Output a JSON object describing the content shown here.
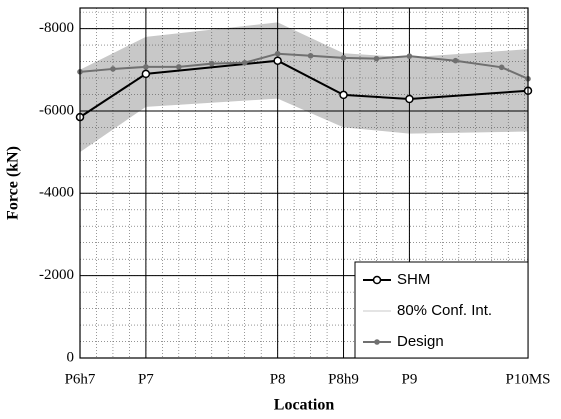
{
  "chart_data": {
    "type": "line",
    "xlabel": "Location",
    "ylabel": "Force (kN)",
    "xlim": [
      0,
      6.8
    ],
    "ylim": [
      0,
      -8500
    ],
    "xticks": [
      {
        "value": 0,
        "label": "P6h7"
      },
      {
        "value": 1,
        "label": "P7"
      },
      {
        "value": 3,
        "label": "P8"
      },
      {
        "value": 4,
        "label": "P8h9"
      },
      {
        "value": 5,
        "label": "P9"
      },
      {
        "value": 6.8,
        "label": "P10MS"
      }
    ],
    "yticks": [
      0,
      -2000,
      -4000,
      -6000,
      -8000
    ],
    "grid": true,
    "minor_grid": true,
    "legend": "lower right",
    "series": [
      {
        "name": "SHM",
        "color": "#000000",
        "marker": "open-circle",
        "x": [
          0,
          1,
          3,
          4,
          5,
          6.8
        ],
        "values": [
          -5850,
          -6900,
          -7220,
          -6390,
          -6290,
          -6490
        ]
      },
      {
        "name": "80% Conf. Int.",
        "color": "#c8c8c8",
        "kind": "band",
        "x": [
          0,
          1,
          3,
          4,
          5,
          6.8
        ],
        "values": [
          -7000,
          -7800,
          -8150,
          -7400,
          -7300,
          -7500
        ],
        "lower": [
          -5000,
          -6100,
          -6300,
          -5600,
          -5450,
          -5500
        ]
      },
      {
        "name": "Design",
        "color": "#707070",
        "marker": "dot",
        "x": [
          0,
          0.5,
          1,
          1.5,
          2,
          2.5,
          3,
          3.5,
          4,
          4.5,
          5,
          5.7,
          6.4,
          6.8
        ],
        "values": [
          -6950,
          -7020,
          -7070,
          -7070,
          -7150,
          -7170,
          -7390,
          -7340,
          -7290,
          -7270,
          -7330,
          -7220,
          -7060,
          -6780
        ]
      }
    ]
  }
}
